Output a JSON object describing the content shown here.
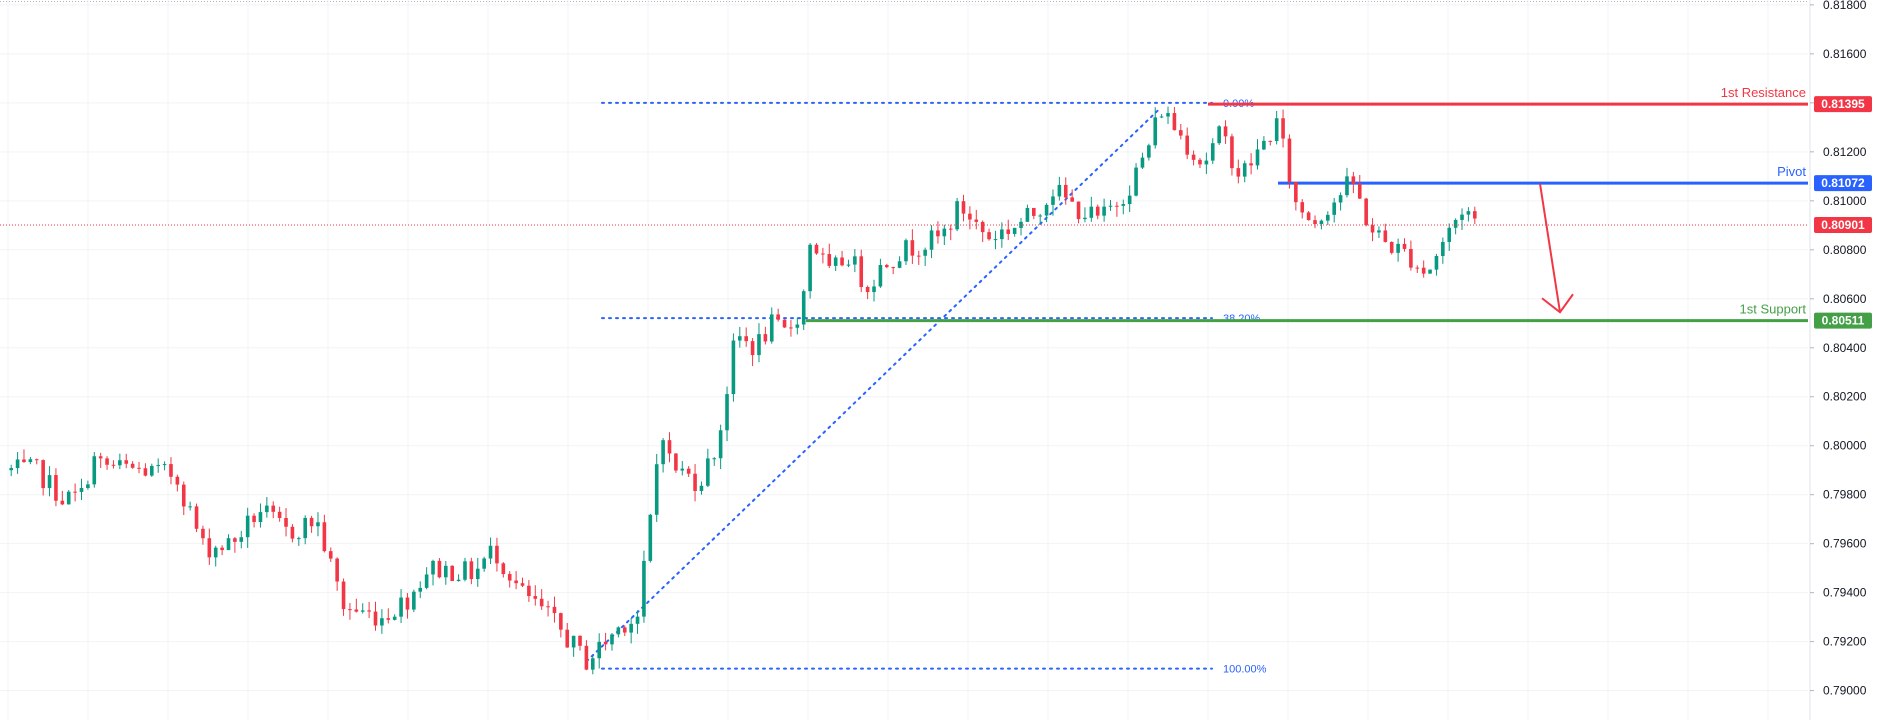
{
  "chart_data": {
    "type": "candlestick",
    "title": "",
    "xlabel": "",
    "ylabel": "",
    "ylim": [
      0.7888,
      0.8182
    ],
    "grid": true,
    "price_axis_labels": [
      "0.81800",
      "0.81600",
      "0.81400",
      "0.81200",
      "0.81000",
      "0.80800",
      "0.80600",
      "0.80400",
      "0.80200",
      "0.80000",
      "0.79800",
      "0.79600",
      "0.79400",
      "0.79200",
      "0.79000"
    ],
    "price_axis_values": [
      0.818,
      0.816,
      0.814,
      0.812,
      0.81,
      0.808,
      0.806,
      0.804,
      0.802,
      0.8,
      0.798,
      0.796,
      0.794,
      0.792,
      0.79
    ],
    "current_price": {
      "label": "0.80901",
      "value": 0.80901,
      "color": "#f23645"
    },
    "levels": [
      {
        "key": "resistance",
        "name": "1st Resistance",
        "value": 0.81395,
        "label": "0.81395",
        "color": "#f23645"
      },
      {
        "key": "pivot",
        "name": "Pivot",
        "value": 0.81072,
        "label": "0.81072",
        "color": "#2962ff"
      },
      {
        "key": "support",
        "name": "1st Support",
        "value": 0.80511,
        "label": "0.80511",
        "color": "#43a047"
      }
    ],
    "fibonacci": [
      {
        "label": "0.00%",
        "value": 0.814
      },
      {
        "label": "38.20%",
        "value": 0.80521
      },
      {
        "label": "100.00%",
        "value": 0.7909
      }
    ],
    "arrow": {
      "direction": "down",
      "from_value": 0.8107,
      "to_value": 0.80545,
      "color": "#f23645"
    },
    "path": [
      [
        0,
        0.799
      ],
      [
        0.3,
        0.799
      ],
      [
        0.6,
        0.7978
      ],
      [
        0.8,
        0.798
      ],
      [
        0.9,
        0.7995
      ],
      [
        1.0,
        0.7992
      ],
      [
        1.8,
        0.7988
      ],
      [
        2.1,
        0.7958
      ],
      [
        2.4,
        0.796
      ],
      [
        2.7,
        0.7974
      ],
      [
        3.0,
        0.7964
      ],
      [
        3.3,
        0.797
      ],
      [
        3.6,
        0.7934
      ],
      [
        4.0,
        0.793
      ],
      [
        4.3,
        0.7938
      ],
      [
        4.5,
        0.795
      ],
      [
        5.0,
        0.7948
      ],
      [
        5.2,
        0.7958
      ],
      [
        5.5,
        0.794
      ],
      [
        5.8,
        0.793
      ],
      [
        6.2,
        0.7912
      ],
      [
        6.6,
        0.7928
      ],
      [
        6.75,
        0.793
      ],
      [
        6.9,
        0.7975
      ],
      [
        7.0,
        0.801
      ],
      [
        7.1,
        0.7992
      ],
      [
        7.4,
        0.7985
      ],
      [
        7.6,
        0.8
      ],
      [
        7.8,
        0.8045
      ],
      [
        8.0,
        0.804
      ],
      [
        8.2,
        0.805
      ],
      [
        8.3,
        0.8045
      ],
      [
        8.5,
        0.8055
      ],
      [
        8.6,
        0.8085
      ],
      [
        8.8,
        0.807
      ],
      [
        9.0,
        0.8078
      ],
      [
        9.2,
        0.8065
      ],
      [
        9.4,
        0.8075
      ],
      [
        9.6,
        0.808
      ],
      [
        10.0,
        0.8085
      ],
      [
        10.2,
        0.8098
      ],
      [
        10.5,
        0.8085
      ],
      [
        10.8,
        0.809
      ],
      [
        11.0,
        0.8095
      ],
      [
        11.2,
        0.8105
      ],
      [
        11.4,
        0.8098
      ],
      [
        11.7,
        0.8092
      ],
      [
        12.0,
        0.8105
      ],
      [
        12.2,
        0.812
      ],
      [
        12.35,
        0.8138
      ],
      [
        12.6,
        0.8125
      ],
      [
        12.8,
        0.8115
      ],
      [
        13.0,
        0.8128
      ],
      [
        13.2,
        0.811
      ],
      [
        13.4,
        0.812
      ],
      [
        13.6,
        0.8132
      ],
      [
        13.8,
        0.8098
      ],
      [
        14.0,
        0.8092
      ],
      [
        14.2,
        0.81
      ],
      [
        14.4,
        0.8108
      ],
      [
        14.6,
        0.8088
      ],
      [
        14.8,
        0.8082
      ],
      [
        15.0,
        0.8078
      ],
      [
        15.2,
        0.807
      ],
      [
        15.4,
        0.8085
      ],
      [
        15.6,
        0.8098
      ],
      [
        15.75,
        0.809
      ]
    ]
  }
}
